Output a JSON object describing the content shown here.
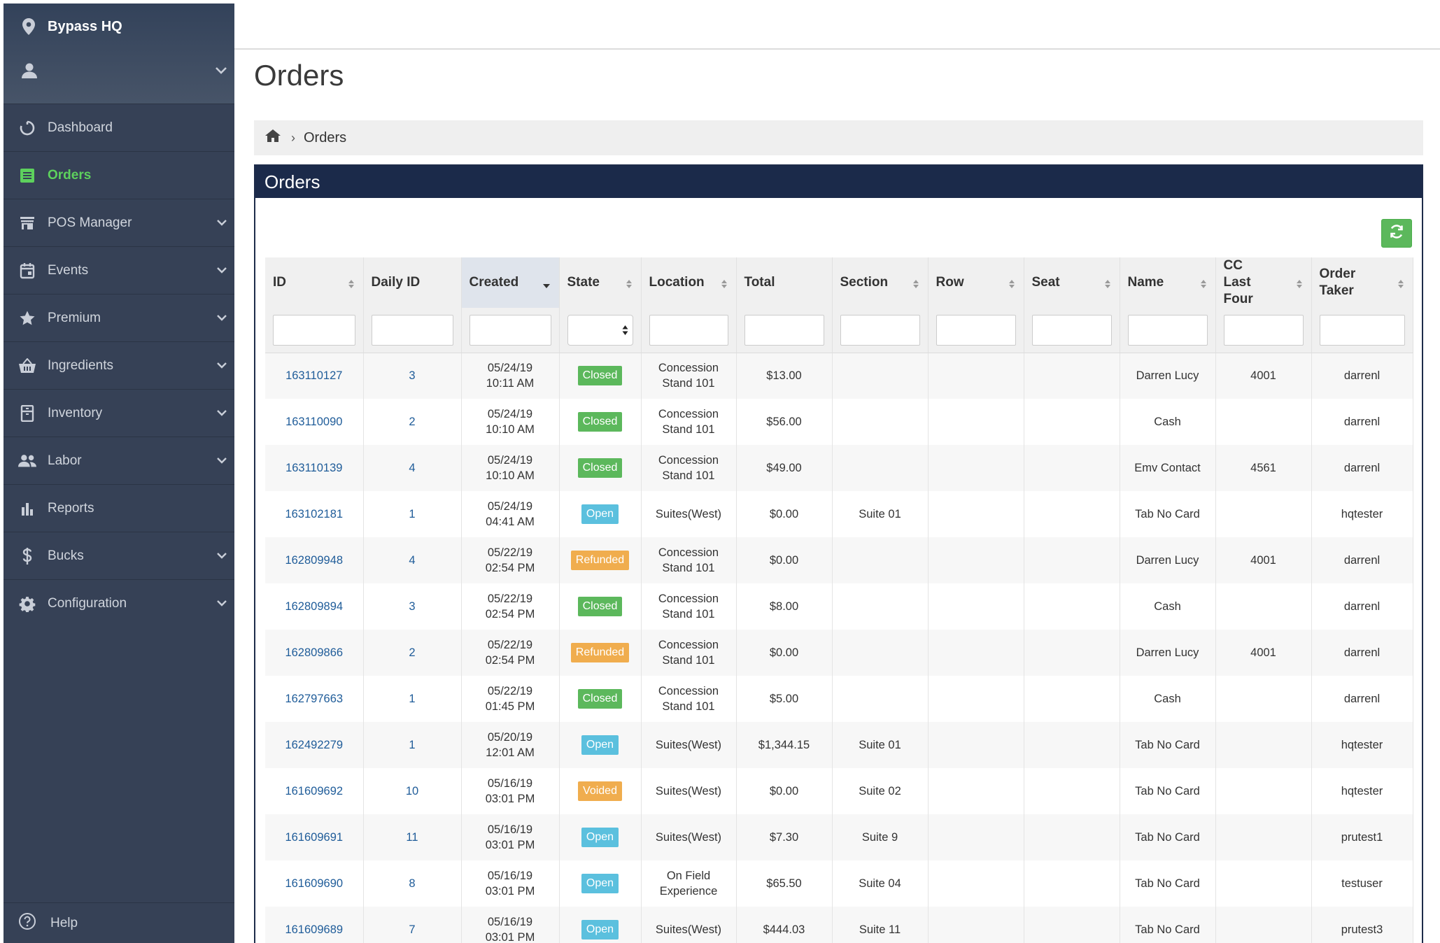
{
  "app": {
    "name": "Bypass HQ"
  },
  "sidebar": {
    "items": [
      {
        "label": "Dashboard",
        "icon": "dashboard-icon",
        "active": false,
        "has_children": false
      },
      {
        "label": "Orders",
        "icon": "orders-icon",
        "active": true,
        "has_children": false
      },
      {
        "label": "POS Manager",
        "icon": "store-icon",
        "active": false,
        "has_children": true
      },
      {
        "label": "Events",
        "icon": "calendar-icon",
        "active": false,
        "has_children": true
      },
      {
        "label": "Premium",
        "icon": "star-icon",
        "active": false,
        "has_children": true
      },
      {
        "label": "Ingredients",
        "icon": "basket-icon",
        "active": false,
        "has_children": true
      },
      {
        "label": "Inventory",
        "icon": "inventory-icon",
        "active": false,
        "has_children": true
      },
      {
        "label": "Labor",
        "icon": "people-icon",
        "active": false,
        "has_children": true
      },
      {
        "label": "Reports",
        "icon": "bar-chart-icon",
        "active": false,
        "has_children": false
      },
      {
        "label": "Bucks",
        "icon": "dollar-icon",
        "active": false,
        "has_children": true
      },
      {
        "label": "Configuration",
        "icon": "gear-icon",
        "active": false,
        "has_children": true
      }
    ],
    "help_label": "Help"
  },
  "page": {
    "title": "Orders"
  },
  "breadcrumb": {
    "current": "Orders"
  },
  "panel": {
    "title": "Orders"
  },
  "table": {
    "columns": [
      {
        "label": "ID",
        "sortable": true
      },
      {
        "label": "Daily ID",
        "sortable": false
      },
      {
        "label": "Created",
        "sortable": true,
        "sorted": "desc"
      },
      {
        "label": "State",
        "sortable": true
      },
      {
        "label": "Location",
        "sortable": true
      },
      {
        "label": "Total",
        "sortable": false
      },
      {
        "label": "Section",
        "sortable": true
      },
      {
        "label": "Row",
        "sortable": true
      },
      {
        "label": "Seat",
        "sortable": true
      },
      {
        "label": "Name",
        "sortable": true
      },
      {
        "label": "CC Last Four",
        "sortable": true
      },
      {
        "label": "Order Taker",
        "sortable": true
      }
    ],
    "rows": [
      {
        "id": "163110127",
        "daily_id": "3",
        "created": "05/24/19 10:11 AM",
        "state": "Closed",
        "location": "Concession Stand 101",
        "total": "$13.00",
        "section": "",
        "row": "",
        "seat": "",
        "name": "Darren Lucy",
        "cc_last_four": "4001",
        "order_taker": "darrenl"
      },
      {
        "id": "163110090",
        "daily_id": "2",
        "created": "05/24/19 10:10 AM",
        "state": "Closed",
        "location": "Concession Stand 101",
        "total": "$56.00",
        "section": "",
        "row": "",
        "seat": "",
        "name": "Cash",
        "cc_last_four": "",
        "order_taker": "darrenl"
      },
      {
        "id": "163110139",
        "daily_id": "4",
        "created": "05/24/19 10:10 AM",
        "state": "Closed",
        "location": "Concession Stand 101",
        "total": "$49.00",
        "section": "",
        "row": "",
        "seat": "",
        "name": "Emv Contact",
        "cc_last_four": "4561",
        "order_taker": "darrenl"
      },
      {
        "id": "163102181",
        "daily_id": "1",
        "created": "05/24/19 04:41 AM",
        "state": "Open",
        "location": "Suites(West)",
        "total": "$0.00",
        "section": "Suite 01",
        "row": "",
        "seat": "",
        "name": "Tab No Card",
        "cc_last_four": "",
        "order_taker": "hqtester"
      },
      {
        "id": "162809948",
        "daily_id": "4",
        "created": "05/22/19 02:54 PM",
        "state": "Refunded",
        "location": "Concession Stand 101",
        "total": "$0.00",
        "section": "",
        "row": "",
        "seat": "",
        "name": "Darren Lucy",
        "cc_last_four": "4001",
        "order_taker": "darrenl"
      },
      {
        "id": "162809894",
        "daily_id": "3",
        "created": "05/22/19 02:54 PM",
        "state": "Closed",
        "location": "Concession Stand 101",
        "total": "$8.00",
        "section": "",
        "row": "",
        "seat": "",
        "name": "Cash",
        "cc_last_four": "",
        "order_taker": "darrenl"
      },
      {
        "id": "162809866",
        "daily_id": "2",
        "created": "05/22/19 02:54 PM",
        "state": "Refunded",
        "location": "Concession Stand 101",
        "total": "$0.00",
        "section": "",
        "row": "",
        "seat": "",
        "name": "Darren Lucy",
        "cc_last_four": "4001",
        "order_taker": "darrenl"
      },
      {
        "id": "162797663",
        "daily_id": "1",
        "created": "05/22/19 01:45 PM",
        "state": "Closed",
        "location": "Concession Stand 101",
        "total": "$5.00",
        "section": "",
        "row": "",
        "seat": "",
        "name": "Cash",
        "cc_last_four": "",
        "order_taker": "darrenl"
      },
      {
        "id": "162492279",
        "daily_id": "1",
        "created": "05/20/19 12:01 AM",
        "state": "Open",
        "location": "Suites(West)",
        "total": "$1,344.15",
        "section": "Suite 01",
        "row": "",
        "seat": "",
        "name": "Tab No Card",
        "cc_last_four": "",
        "order_taker": "hqtester"
      },
      {
        "id": "161609692",
        "daily_id": "10",
        "created": "05/16/19 03:01 PM",
        "state": "Voided",
        "location": "Suites(West)",
        "total": "$0.00",
        "section": "Suite 02",
        "row": "",
        "seat": "",
        "name": "Tab No Card",
        "cc_last_four": "",
        "order_taker": "hqtester"
      },
      {
        "id": "161609691",
        "daily_id": "11",
        "created": "05/16/19 03:01 PM",
        "state": "Open",
        "location": "Suites(West)",
        "total": "$7.30",
        "section": "Suite 9",
        "row": "",
        "seat": "",
        "name": "Tab No Card",
        "cc_last_four": "",
        "order_taker": "prutest1"
      },
      {
        "id": "161609690",
        "daily_id": "8",
        "created": "05/16/19 03:01 PM",
        "state": "Open",
        "location": "On Field Experience",
        "total": "$65.50",
        "section": "Suite 04",
        "row": "",
        "seat": "",
        "name": "Tab No Card",
        "cc_last_four": "",
        "order_taker": "testuser"
      },
      {
        "id": "161609689",
        "daily_id": "7",
        "created": "05/16/19 03:01 PM",
        "state": "Open",
        "location": "Suites(West)",
        "total": "$444.03",
        "section": "Suite 11",
        "row": "",
        "seat": "",
        "name": "Tab No Card",
        "cc_last_four": "",
        "order_taker": "prutest3"
      }
    ]
  },
  "colors": {
    "sidebar_bg": "#364156",
    "active_nav": "#5dd15d",
    "panel_header": "#1b2a4a",
    "link": "#1f5c99",
    "closed": "#5cb85c",
    "open": "#5bc0de",
    "refunded": "#f0ad4e",
    "voided": "#f0ad4e"
  }
}
